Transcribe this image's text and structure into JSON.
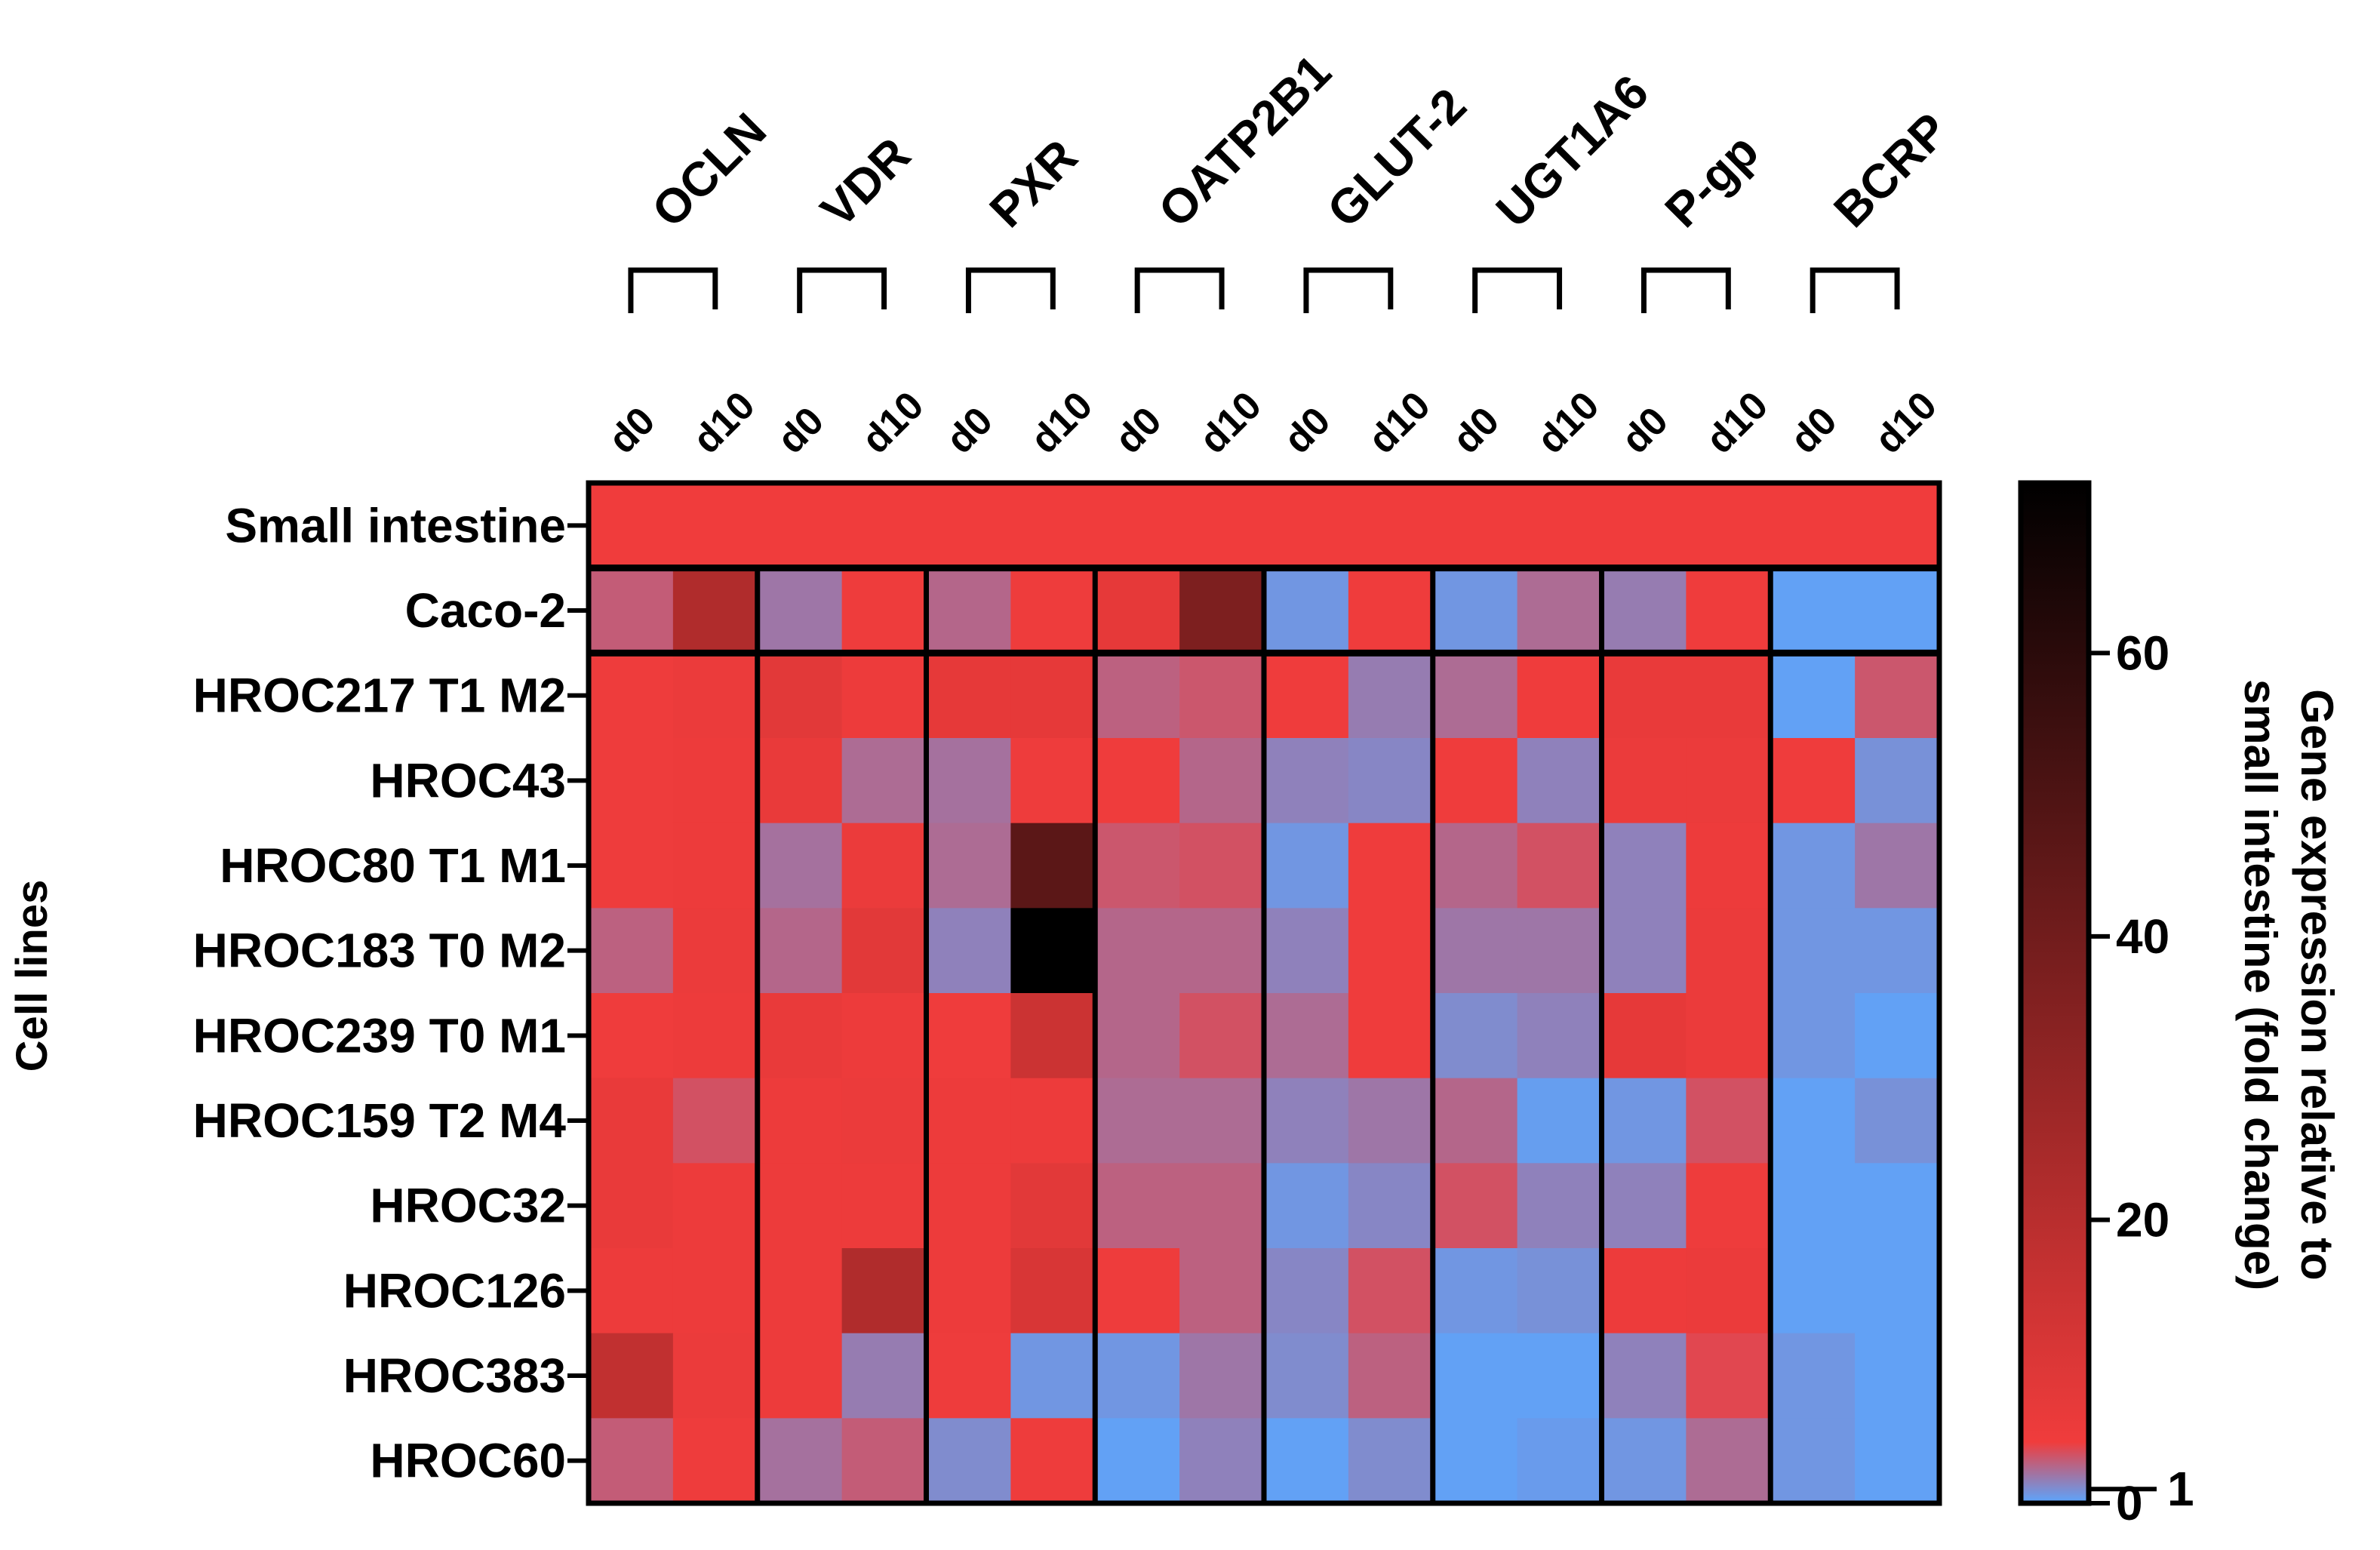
{
  "chart_data": {
    "type": "heatmap",
    "title": "",
    "ylabel": "Cell lines",
    "colorbar": {
      "label_line1": "Gene expression relative to",
      "label_line2": "small intestine (fold change)",
      "ticks": [
        0,
        1,
        20,
        40,
        60
      ],
      "tick_labels": [
        "0",
        "1",
        "20",
        "40",
        "60"
      ],
      "range": [
        0,
        72
      ],
      "colors": {
        "low": "#5aa6ff",
        "mid": "#f03c3c",
        "high": "#000000"
      }
    },
    "genes": [
      "OCLN",
      "VDR",
      "PXR",
      "OATP2B1",
      "GLUT-2",
      "UGT1A6",
      "P-gp",
      "BCRP"
    ],
    "timepoints": [
      "d0",
      "d10"
    ],
    "columns": [
      "OCLN d0",
      "OCLN d10",
      "VDR d0",
      "VDR d10",
      "PXR d0",
      "PXR d10",
      "OATP2B1 d0",
      "OATP2B1 d10",
      "GLUT-2 d0",
      "GLUT-2 d10",
      "UGT1A6 d0",
      "UGT1A6 d10",
      "P-gp d0",
      "P-gp d10",
      "BCRP d0",
      "BCRP d10"
    ],
    "rows": [
      "Small intestine",
      "Caco-2",
      "HROC217 T1 M2",
      "HROC43",
      "HROC80 T1 M1",
      "HROC183 T0 M2",
      "HROC239 T0 M1",
      "HROC159 T2 M4",
      "HROC32",
      "HROC126",
      "HROC383",
      "HROC60"
    ],
    "values": [
      [
        1,
        1,
        1,
        1,
        1,
        1,
        1,
        1,
        1,
        1,
        1,
        1,
        1,
        1,
        1,
        1
      ],
      [
        0.7,
        20,
        0.45,
        1.5,
        0.6,
        1.5,
        4,
        35,
        0.15,
        1.2,
        0.15,
        0.55,
        0.4,
        1.2,
        0.05,
        0.05
      ],
      [
        1.5,
        2.5,
        5,
        2,
        4,
        4,
        0.65,
        0.75,
        1.2,
        0.4,
        0.55,
        1.2,
        3,
        3,
        0.05,
        0.75
      ],
      [
        1.5,
        2,
        3,
        0.55,
        0.5,
        1.5,
        1.2,
        0.6,
        0.35,
        0.3,
        1.2,
        0.35,
        2.5,
        2.5,
        1.2,
        0.2
      ],
      [
        1.5,
        2,
        0.5,
        2.5,
        0.55,
        45,
        0.75,
        0.8,
        0.15,
        1.2,
        0.6,
        0.8,
        0.35,
        2,
        0.15,
        0.45
      ],
      [
        0.65,
        2.5,
        0.6,
        5,
        0.35,
        72,
        0.6,
        0.6,
        0.35,
        1.2,
        0.45,
        0.45,
        0.35,
        2.5,
        0.15,
        0.15
      ],
      [
        1.3,
        2,
        3,
        2,
        1.2,
        12,
        0.6,
        0.8,
        0.55,
        1.2,
        0.25,
        0.35,
        4,
        2.5,
        0.15,
        0.05
      ],
      [
        3,
        0.8,
        2,
        2.5,
        2,
        2,
        0.55,
        0.55,
        0.35,
        0.45,
        0.6,
        0.08,
        0.15,
        0.8,
        0.05,
        0.2
      ],
      [
        3,
        2,
        2,
        2,
        2,
        5,
        0.65,
        0.65,
        0.15,
        0.3,
        0.8,
        0.35,
        0.35,
        1.5,
        0.05,
        0.05
      ],
      [
        2,
        2,
        2,
        20,
        2,
        8,
        1.5,
        0.65,
        0.3,
        0.8,
        0.15,
        0.2,
        2,
        2.5,
        0.05,
        0.05
      ],
      [
        15,
        2.5,
        2,
        0.4,
        1.5,
        0.15,
        0.15,
        0.45,
        0.25,
        0.65,
        0.05,
        0.05,
        0.35,
        0.9,
        0.15,
        0.05
      ],
      [
        0.7,
        1.5,
        0.5,
        0.7,
        0.25,
        1.5,
        0.05,
        0.35,
        0.05,
        0.25,
        0.05,
        0.1,
        0.15,
        0.55,
        0.15,
        0.05
      ]
    ]
  }
}
